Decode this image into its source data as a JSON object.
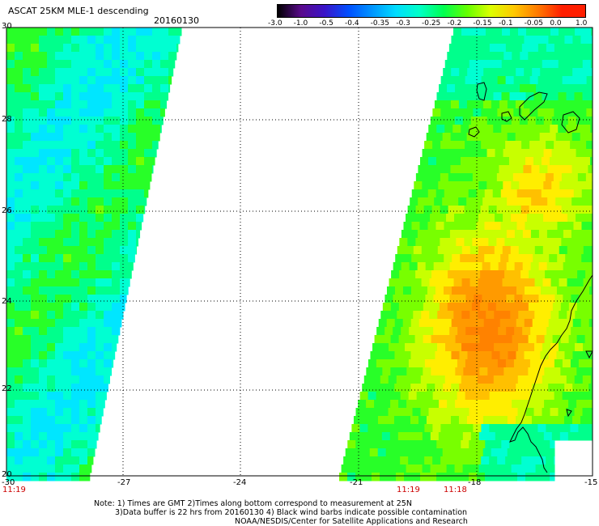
{
  "title": {
    "product": "ASCAT 25KM MLE-1 descending",
    "date": "20160130"
  },
  "colorbar": {
    "labels": [
      "-3.0",
      "-1.0",
      "-0.5",
      "-0.4",
      "-0.35",
      "-0.3",
      "-0.25",
      "-0.2",
      "-0.15",
      "-0.1",
      "-0.05",
      "0.0",
      "1.0"
    ],
    "colors": [
      "#000000",
      "#5a0a8c",
      "#3a14c8",
      "#0050ff",
      "#0096ff",
      "#00dcff",
      "#00ffc8",
      "#00ff50",
      "#64ff00",
      "#dcff00",
      "#ffc800",
      "#ff7800",
      "#ff1e00"
    ]
  },
  "map": {
    "lon_labels": [
      "-30",
      "-27",
      "-24",
      "-21",
      "-18",
      "-15"
    ],
    "lat_labels": [
      "30",
      "28",
      "26",
      "24",
      "22",
      "20"
    ],
    "time_labels": [
      "11:19",
      "11:19",
      "11:18"
    ]
  },
  "note": {
    "line1": "Note: 1) Times are GMT 2)Times along bottom correspond to measurement at 25N",
    "line2": "3)Data buffer is 22 hrs from 20160130 4) Black wind barbs indicate possible contamination",
    "line3": "NOAA/NESDIS/Center for Satellite Applications and Research"
  }
}
